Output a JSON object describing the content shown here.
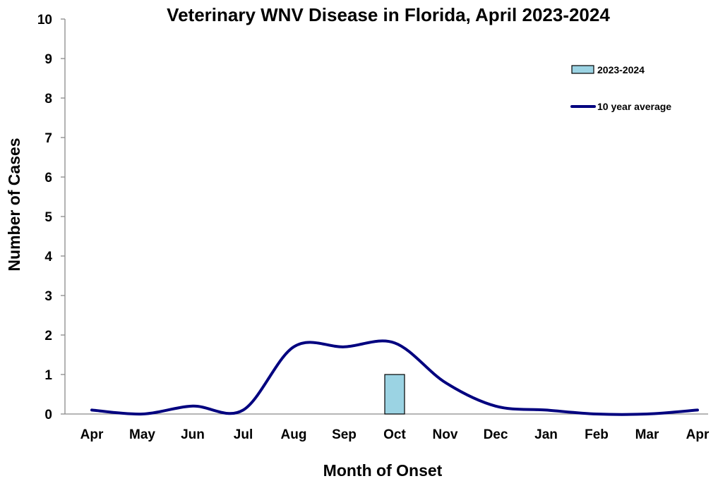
{
  "chart_data": {
    "type": "bar",
    "title": "Veterinary WNV Disease in Florida, April 2023-2024",
    "xlabel": "Month of Onset",
    "ylabel": "Number of Cases",
    "categories": [
      "Apr",
      "May",
      "Jun",
      "Jul",
      "Aug",
      "Sep",
      "Oct",
      "Nov",
      "Dec",
      "Jan",
      "Feb",
      "Mar",
      "Apr"
    ],
    "ylim": [
      0,
      10
    ],
    "yticks": [
      0,
      1,
      2,
      3,
      4,
      5,
      6,
      7,
      8,
      9,
      10
    ],
    "grid": false,
    "legend_position": "top-right",
    "series": [
      {
        "name": "2023-2024",
        "type": "bar",
        "color": "#9BD3E3",
        "values": [
          0,
          0,
          0,
          0,
          0,
          0,
          1,
          0,
          0,
          0,
          0,
          0,
          0
        ]
      },
      {
        "name": "10 year average",
        "type": "line",
        "smooth": true,
        "color": "#00007F",
        "values": [
          0.1,
          0.0,
          0.2,
          0.1,
          1.7,
          1.7,
          1.8,
          0.8,
          0.2,
          0.1,
          0.0,
          0.0,
          0.1
        ]
      }
    ]
  }
}
